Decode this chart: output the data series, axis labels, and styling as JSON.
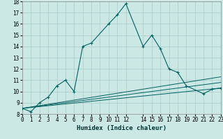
{
  "xlabel": "Humidex (Indice chaleur)",
  "ylabel": "",
  "bg_color": "#cce8e4",
  "grid_color": "#aaccca",
  "line_color": "#006060",
  "marker_color": "#006060",
  "series": [
    {
      "x": [
        0,
        1,
        2,
        3,
        4,
        5,
        6,
        7,
        8,
        10,
        11,
        12,
        14,
        15,
        16,
        17,
        18,
        19,
        21,
        22,
        23
      ],
      "y": [
        8.5,
        8.2,
        9.0,
        9.5,
        10.5,
        11.0,
        10.0,
        14.0,
        14.3,
        16.0,
        16.8,
        17.8,
        14.0,
        15.0,
        13.8,
        12.0,
        11.7,
        10.5,
        9.8,
        10.2,
        10.3
      ],
      "has_markers": true
    },
    {
      "x": [
        0,
        23
      ],
      "y": [
        8.5,
        11.3
      ],
      "has_markers": false
    },
    {
      "x": [
        0,
        23
      ],
      "y": [
        8.5,
        10.8
      ],
      "has_markers": false
    },
    {
      "x": [
        0,
        23
      ],
      "y": [
        8.5,
        10.3
      ],
      "has_markers": false
    }
  ],
  "xlim": [
    0,
    23
  ],
  "ylim": [
    8,
    18
  ],
  "yticks": [
    8,
    9,
    10,
    11,
    12,
    13,
    14,
    15,
    16,
    17,
    18
  ],
  "xticks": [
    0,
    1,
    2,
    3,
    4,
    5,
    6,
    7,
    8,
    9,
    10,
    11,
    12,
    14,
    15,
    16,
    17,
    18,
    19,
    20,
    21,
    22,
    23
  ],
  "xtick_labels": [
    "0",
    "1",
    "2",
    "3",
    "4",
    "5",
    "6",
    "7",
    "8",
    "9",
    "10",
    "11",
    "12",
    "14",
    "15",
    "16",
    "17",
    "18",
    "19",
    "20",
    "21",
    "22",
    "23"
  ],
  "tick_fontsize": 5.5,
  "xlabel_fontsize": 6.5
}
